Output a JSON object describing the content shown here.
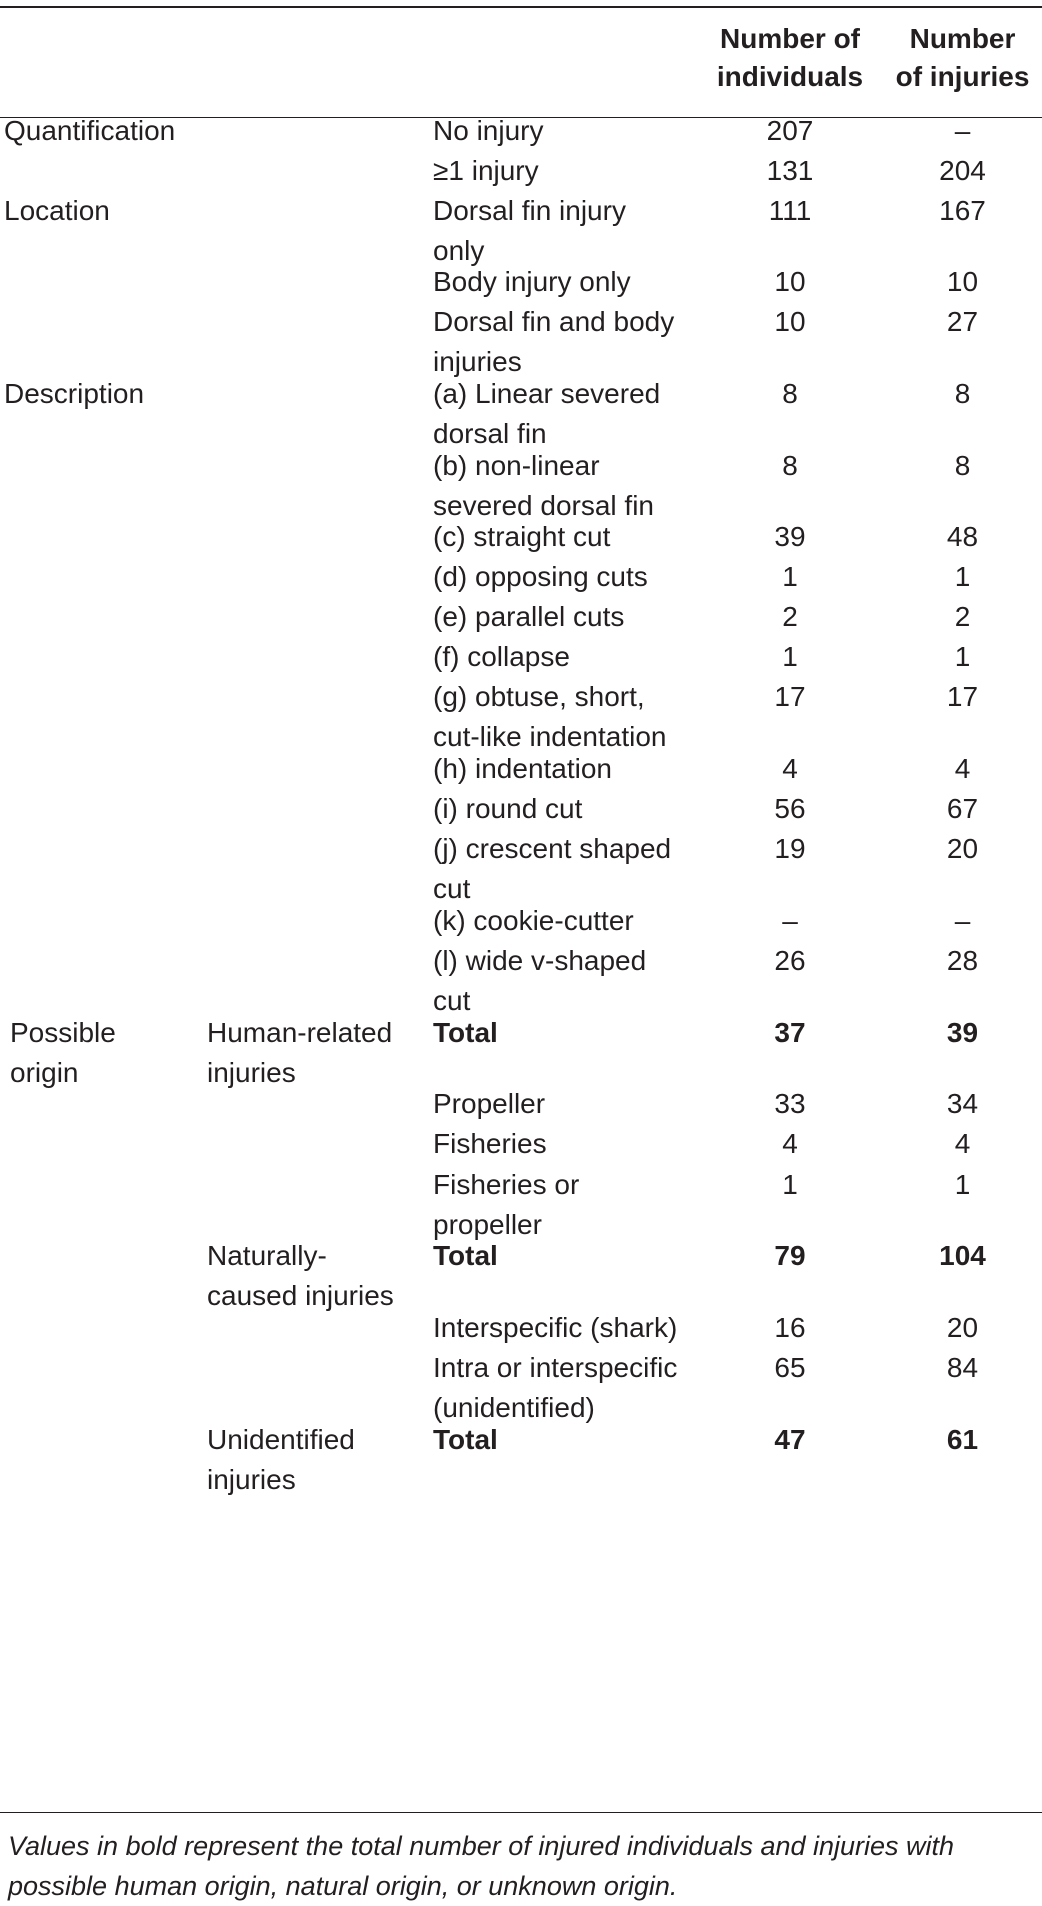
{
  "headers": {
    "col3": "Number of\nindividuals",
    "col4": "Number\nof injuries"
  },
  "rows": [
    {
      "cat": "Quantification",
      "sub": "",
      "desc": "No injury",
      "ind": "207",
      "inj": "–",
      "bold": false
    },
    {
      "cat": "",
      "sub": "",
      "desc": "≥1 injury",
      "ind": "131",
      "inj": "204",
      "bold": false
    },
    {
      "cat": "Location",
      "sub": "",
      "desc": "Dorsal fin injury\nonly",
      "ind": "111",
      "inj": "167",
      "bold": false
    },
    {
      "cat": "",
      "sub": "",
      "desc": "Body injury only",
      "ind": "10",
      "inj": "10",
      "bold": false
    },
    {
      "cat": "",
      "sub": "",
      "desc": "Dorsal fin and body\ninjuries",
      "ind": "10",
      "inj": "27",
      "bold": false
    },
    {
      "cat": "Description",
      "sub": "",
      "desc": "(a) Linear severed\ndorsal fin",
      "ind": "8",
      "inj": "8",
      "bold": false
    },
    {
      "cat": "",
      "sub": "",
      "desc": "(b) non-linear\nsevered dorsal fin",
      "ind": "8",
      "inj": "8",
      "bold": false
    },
    {
      "cat": "",
      "sub": "",
      "desc": "(c) straight cut",
      "ind": "39",
      "inj": "48",
      "bold": false
    },
    {
      "cat": "",
      "sub": "",
      "desc": "(d) opposing cuts",
      "ind": "1",
      "inj": "1",
      "bold": false
    },
    {
      "cat": "",
      "sub": "",
      "desc": "(e) parallel cuts",
      "ind": "2",
      "inj": "2",
      "bold": false
    },
    {
      "cat": "",
      "sub": "",
      "desc": "(f) collapse",
      "ind": "1",
      "inj": "1",
      "bold": false
    },
    {
      "cat": "",
      "sub": "",
      "desc": "(g) obtuse, short,\ncut-like indentation",
      "ind": "17",
      "inj": "17",
      "bold": false
    },
    {
      "cat": "",
      "sub": "",
      "desc": "(h) indentation",
      "ind": "4",
      "inj": "4",
      "bold": false
    },
    {
      "cat": "",
      "sub": "",
      "desc": "(i) round cut",
      "ind": "56",
      "inj": "67",
      "bold": false
    },
    {
      "cat": "",
      "sub": "",
      "desc": "(j) crescent shaped\ncut",
      "ind": "19",
      "inj": "20",
      "bold": false
    },
    {
      "cat": "",
      "sub": "",
      "desc": "(k) cookie-cutter",
      "ind": "–",
      "inj": "–",
      "bold": false
    },
    {
      "cat": "",
      "sub": "",
      "desc": "(l) wide v-shaped\ncut",
      "ind": "26",
      "inj": "28",
      "bold": false
    },
    {
      "cat": "Possible\norigin",
      "sub": "Human-related\ninjuries",
      "desc": "Total",
      "ind": "37",
      "inj": "39",
      "bold": true
    },
    {
      "cat": "",
      "sub": "",
      "desc": "Propeller",
      "ind": "33",
      "inj": "34",
      "bold": false
    },
    {
      "cat": "",
      "sub": "",
      "desc": "Fisheries",
      "ind": "4",
      "inj": "4",
      "bold": false
    },
    {
      "cat": "",
      "sub": "",
      "desc": "Fisheries or\npropeller",
      "ind": "1",
      "inj": "1",
      "bold": false
    },
    {
      "cat": "",
      "sub": "Naturally-\ncaused injuries",
      "desc": "Total",
      "ind": "79",
      "inj": "104",
      "bold": true
    },
    {
      "cat": "",
      "sub": "",
      "desc": "Interspecific (shark)",
      "ind": "16",
      "inj": "20",
      "bold": false
    },
    {
      "cat": "",
      "sub": "",
      "desc": "Intra or interspecific\n(unidentified)",
      "ind": "65",
      "inj": "84",
      "bold": false
    },
    {
      "cat": "",
      "sub": "Unidentified\ninjuries",
      "desc": "Total",
      "ind": "47",
      "inj": "61",
      "bold": true
    }
  ],
  "footnote": "Values in bold represent the total number of injured individuals and injuries with possible human origin, natural origin, or unknown origin."
}
